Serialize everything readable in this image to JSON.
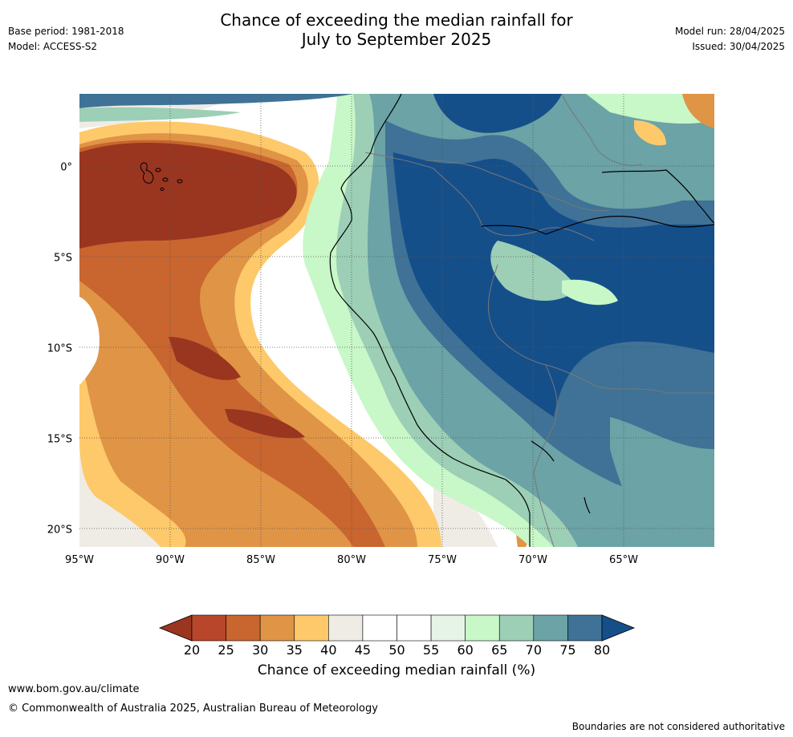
{
  "header": {
    "title_line1": "Chance of exceeding the median rainfall for",
    "title_line2": "July to September 2025",
    "base_period": "Base period: 1981-2018",
    "model": "Model: ACCESS-S2",
    "model_run": "Model run: 28/04/2025",
    "issued": "Issued: 30/04/2025"
  },
  "map": {
    "lat_labels": [
      "0°",
      "5°S",
      "10°S",
      "15°S",
      "20°S"
    ],
    "lon_labels": [
      "95°W",
      "90°W",
      "85°W",
      "80°W",
      "75°W",
      "70°W",
      "65°W"
    ],
    "lat_values": [
      0,
      -5,
      -10,
      -15,
      -20
    ],
    "lon_values": [
      -95,
      -90,
      -85,
      -80,
      -75,
      -70,
      -65
    ],
    "lon_range": [
      -95,
      -60
    ],
    "lat_range": [
      -21,
      4
    ]
  },
  "colorbar": {
    "ticks": [
      "20",
      "25",
      "30",
      "35",
      "40",
      "45",
      "50",
      "55",
      "60",
      "65",
      "70",
      "75",
      "80"
    ],
    "colors": [
      "#9a3520",
      "#b8462a",
      "#c9652f",
      "#e09446",
      "#fdc96a",
      "#efece6",
      "#ffffff",
      "#ffffff",
      "#e6f4e8",
      "#c8f7c8",
      "#9ccfb6",
      "#6ba3a6",
      "#3f7296",
      "#154f8a"
    ],
    "label": "Chance of exceeding median rainfall (%)"
  },
  "footer": {
    "website": "www.bom.gov.au/climate",
    "copyright": "© Commonwealth of Australia 2025, Australian Bureau of Meteorology",
    "disclaimer": "Boundaries are not considered authoritative"
  }
}
